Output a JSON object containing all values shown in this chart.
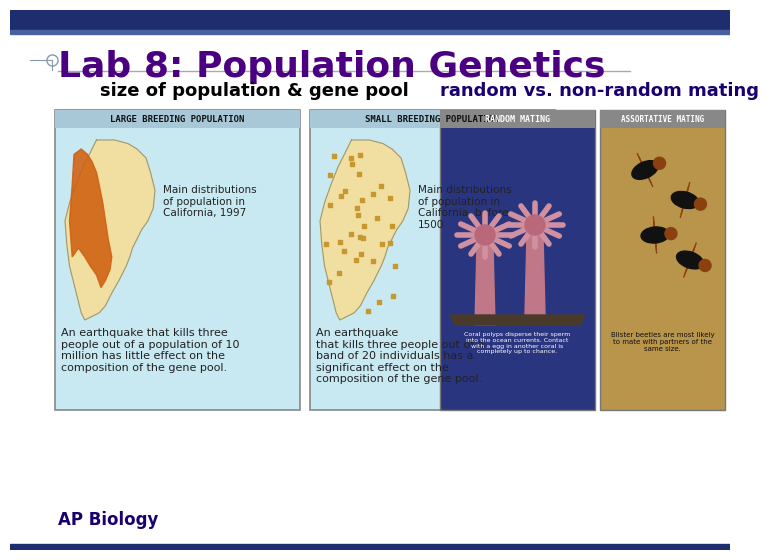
{
  "bg_color": "#ffffff",
  "top_bar_color": "#1e2d6e",
  "thin_bar_color": "#4a5fa0",
  "title": "Lab 8: Population Genetics",
  "title_color": "#4b0082",
  "title_fontsize": 26,
  "subtitle1": "size of population & gene pool",
  "subtitle1_color": "#000000",
  "subtitle1_fontsize": 13,
  "subtitle2": "random vs. non-random mating",
  "subtitle2_color": "#1a006e",
  "subtitle2_fontsize": 13,
  "ap_biology_text": "AP Biology",
  "ap_biology_color": "#1a006e",
  "ap_biology_fontsize": 12,
  "left_box_label": "LARGE BREEDING POPULATION",
  "right_box_label": "SMALL BREEDING POPULATION",
  "random_label": "RANDOM MATING",
  "assortative_label": "ASSORTATIVE MATING",
  "box_bg_color": "#c8e8f2",
  "box_header_color": "#a8c8d8",
  "left_caption": "An earthquake that kills three\npeople out of a population of 10\nmillion has little effect on the\ncomposition of the gene pool.",
  "right_caption": "An earthquake\nthat kills three people out of a\nband of 20 individuals has a\nsignificant effect on the\ncomposition of the gene pool.",
  "left_map_text": "Main distributions\nof population in\nCalifornia, 1997",
  "right_map_text": "Main distributions\nof population in\nCalifornia, before\n1500",
  "underline_color": "#aaaaaa",
  "text_color": "#222222",
  "caption_fontsize": 8,
  "map_text_fontsize": 7.5,
  "header_fontsize": 6.5,
  "rm_bg": "#2a3580",
  "am_bg": "#b8954a",
  "rm_caption": "Coral polyps disperse their sperm\ninto the ocean currents. Contact\nwith a egg in another coral is\ncompletely up to chance.",
  "am_caption": "Blister beetles are most likely\nto mate with partners of the\nsame size.",
  "mating_header_bg": "#888888"
}
